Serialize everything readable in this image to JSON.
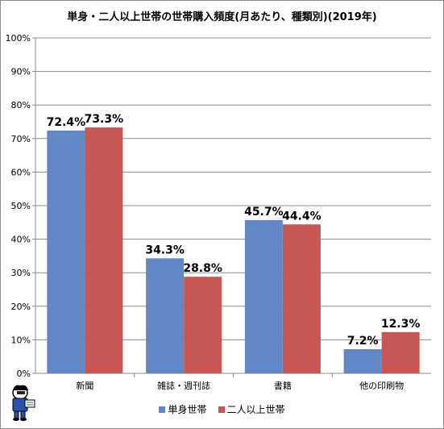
{
  "chart_data": {
    "type": "bar",
    "title": "単身・二人以上世帯の世帯購入頻度(月あたり、種類別)(2019年)",
    "categories": [
      "新聞",
      "雑誌・週刊誌",
      "書籍",
      "他の印刷物"
    ],
    "series": [
      {
        "name": "単身世帯",
        "values": [
          72.4,
          34.3,
          45.7,
          7.2
        ],
        "color": "#6286C6"
      },
      {
        "name": "二人以上世帯",
        "values": [
          73.3,
          28.8,
          44.4,
          12.3
        ],
        "color": "#C75754"
      }
    ],
    "data_labels": [
      [
        "72.4%",
        "34.3%",
        "45.7%",
        "7.2%"
      ],
      [
        "73.3%",
        "28.8%",
        "44.4%",
        "12.3%"
      ]
    ],
    "ylim": [
      0,
      100
    ],
    "y_ticks": [
      "0%",
      "10%",
      "20%",
      "30%",
      "40%",
      "50%",
      "60%",
      "70%",
      "80%",
      "90%",
      "100%"
    ],
    "grid": true,
    "legend_position": "bottom",
    "xlabel": "",
    "ylabel": ""
  },
  "mascot_icon": "mascot-icon"
}
